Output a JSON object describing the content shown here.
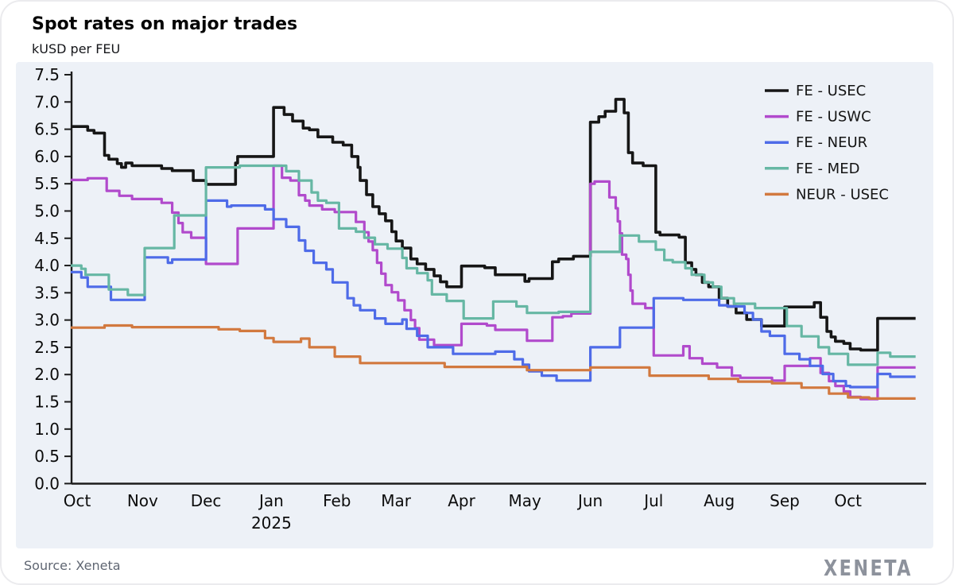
{
  "title": "Spot rates on major trades",
  "subtitle": "kUSD per FEU",
  "source": "Source: Xeneta",
  "brand": "XENETA",
  "chart_data": {
    "type": "line",
    "interpolation": "step-after",
    "title": "Spot rates on major trades",
    "ylabel": "kUSD per FEU",
    "x_unit": "days since 2024-10-01",
    "ylim": [
      0,
      7.5
    ],
    "y_tick_step": 0.5,
    "grid": false,
    "legend_position": "top-right",
    "plot_bg": "#edf1f7",
    "axis_color": "#1c1c1c",
    "x_ticks": [
      {
        "label": "Oct",
        "day": 0
      },
      {
        "label": "Nov",
        "day": 31
      },
      {
        "label": "Dec",
        "day": 61
      },
      {
        "label": "Jan",
        "day": 92,
        "sublabel": "2025"
      },
      {
        "label": "Feb",
        "day": 123
      },
      {
        "label": "Mar",
        "day": 151
      },
      {
        "label": "Apr",
        "day": 182
      },
      {
        "label": "May",
        "day": 212
      },
      {
        "label": "Jun",
        "day": 243
      },
      {
        "label": "Jul",
        "day": 273
      },
      {
        "label": "Aug",
        "day": 304
      },
      {
        "label": "Sep",
        "day": 335
      },
      {
        "label": "Oct",
        "day": 365
      }
    ],
    "series": [
      {
        "name": "FE - USEC",
        "color": "#161616",
        "width": 3.6,
        "points": [
          [
            -3,
            6.55
          ],
          [
            5,
            6.48
          ],
          [
            8,
            6.43
          ],
          [
            13,
            6.02
          ],
          [
            15,
            5.95
          ],
          [
            19,
            5.87
          ],
          [
            21,
            5.8
          ],
          [
            23,
            5.88
          ],
          [
            26,
            5.83
          ],
          [
            40,
            5.78
          ],
          [
            45,
            5.74
          ],
          [
            55,
            5.56
          ],
          [
            61,
            5.49
          ],
          [
            75,
            5.88
          ],
          [
            76,
            6.0
          ],
          [
            93,
            6.9
          ],
          [
            98,
            6.77
          ],
          [
            102,
            6.65
          ],
          [
            107,
            6.52
          ],
          [
            110,
            6.49
          ],
          [
            114,
            6.36
          ],
          [
            121,
            6.26
          ],
          [
            126,
            6.21
          ],
          [
            130,
            6.0
          ],
          [
            133,
            5.8
          ],
          [
            134,
            5.56
          ],
          [
            137,
            5.3
          ],
          [
            140,
            5.08
          ],
          [
            143,
            4.95
          ],
          [
            146,
            4.82
          ],
          [
            149,
            4.62
          ],
          [
            151,
            4.45
          ],
          [
            154,
            4.32
          ],
          [
            158,
            4.12
          ],
          [
            161,
            4.03
          ],
          [
            165,
            3.93
          ],
          [
            169,
            3.81
          ],
          [
            172,
            3.7
          ],
          [
            175,
            3.61
          ],
          [
            182,
            3.99
          ],
          [
            193,
            3.96
          ],
          [
            198,
            3.83
          ],
          [
            212,
            3.71
          ],
          [
            214,
            3.76
          ],
          [
            225,
            4.07
          ],
          [
            228,
            4.12
          ],
          [
            235,
            4.17
          ],
          [
            243,
            6.63
          ],
          [
            247,
            6.73
          ],
          [
            250,
            6.83
          ],
          [
            255,
            7.05
          ],
          [
            259,
            6.8
          ],
          [
            261,
            6.07
          ],
          [
            263,
            5.88
          ],
          [
            268,
            5.83
          ],
          [
            274,
            4.61
          ],
          [
            276,
            4.56
          ],
          [
            285,
            4.52
          ],
          [
            288,
            4.05
          ],
          [
            291,
            3.93
          ],
          [
            293,
            3.83
          ],
          [
            296,
            3.69
          ],
          [
            299,
            3.61
          ],
          [
            304,
            3.4
          ],
          [
            308,
            3.25
          ],
          [
            312,
            3.13
          ],
          [
            317,
            3.01
          ],
          [
            324,
            2.89
          ],
          [
            335,
            3.24
          ],
          [
            349,
            3.32
          ],
          [
            352,
            3.05
          ],
          [
            355,
            2.79
          ],
          [
            357,
            2.69
          ],
          [
            359,
            2.61
          ],
          [
            363,
            2.57
          ],
          [
            366,
            2.47
          ],
          [
            371,
            2.45
          ],
          [
            379,
            3.03
          ],
          [
            397,
            3.03
          ]
        ]
      },
      {
        "name": "FE - USWC",
        "color": "#b14acc",
        "width": 3.2,
        "points": [
          [
            -3,
            5.57
          ],
          [
            5,
            5.6
          ],
          [
            14,
            5.37
          ],
          [
            20,
            5.28
          ],
          [
            26,
            5.22
          ],
          [
            40,
            5.15
          ],
          [
            45,
            4.97
          ],
          [
            48,
            4.78
          ],
          [
            50,
            4.61
          ],
          [
            54,
            4.51
          ],
          [
            61,
            4.03
          ],
          [
            76,
            4.68
          ],
          [
            93,
            5.83
          ],
          [
            97,
            5.61
          ],
          [
            101,
            5.56
          ],
          [
            105,
            5.29
          ],
          [
            108,
            5.19
          ],
          [
            110,
            5.1
          ],
          [
            116,
            5.03
          ],
          [
            122,
            4.98
          ],
          [
            132,
            4.8
          ],
          [
            136,
            4.61
          ],
          [
            138,
            4.44
          ],
          [
            140,
            4.28
          ],
          [
            142,
            4.05
          ],
          [
            144,
            3.85
          ],
          [
            146,
            3.64
          ],
          [
            149,
            3.51
          ],
          [
            152,
            3.36
          ],
          [
            155,
            3.18
          ],
          [
            158,
            3.0
          ],
          [
            160,
            2.85
          ],
          [
            162,
            2.64
          ],
          [
            169,
            2.54
          ],
          [
            182,
            2.93
          ],
          [
            194,
            2.9
          ],
          [
            198,
            2.82
          ],
          [
            213,
            2.62
          ],
          [
            225,
            3.05
          ],
          [
            230,
            3.07
          ],
          [
            234,
            3.12
          ],
          [
            243,
            5.5
          ],
          [
            245,
            5.54
          ],
          [
            252,
            5.25
          ],
          [
            255,
            5.05
          ],
          [
            256,
            4.81
          ],
          [
            257,
            4.59
          ],
          [
            258,
            4.2
          ],
          [
            260,
            4.12
          ],
          [
            261,
            3.83
          ],
          [
            262,
            3.54
          ],
          [
            263,
            3.3
          ],
          [
            269,
            3.22
          ],
          [
            273,
            2.35
          ],
          [
            287,
            2.52
          ],
          [
            290,
            2.3
          ],
          [
            296,
            2.2
          ],
          [
            303,
            2.13
          ],
          [
            310,
            1.98
          ],
          [
            314,
            1.94
          ],
          [
            329,
            1.89
          ],
          [
            335,
            2.16
          ],
          [
            347,
            2.3
          ],
          [
            352,
            2.03
          ],
          [
            356,
            1.88
          ],
          [
            359,
            1.79
          ],
          [
            363,
            1.69
          ],
          [
            366,
            1.59
          ],
          [
            371,
            1.55
          ],
          [
            379,
            2.13
          ],
          [
            397,
            2.13
          ]
        ]
      },
      {
        "name": "FE - NEUR",
        "color": "#4e6be8",
        "width": 3.2,
        "points": [
          [
            -3,
            3.88
          ],
          [
            2,
            3.78
          ],
          [
            5,
            3.61
          ],
          [
            16,
            3.37
          ],
          [
            32,
            4.15
          ],
          [
            43,
            4.05
          ],
          [
            45,
            4.11
          ],
          [
            61,
            5.19
          ],
          [
            71,
            5.08
          ],
          [
            73,
            5.1
          ],
          [
            89,
            5.03
          ],
          [
            93,
            4.85
          ],
          [
            99,
            4.71
          ],
          [
            105,
            4.46
          ],
          [
            108,
            4.27
          ],
          [
            112,
            4.05
          ],
          [
            118,
            3.93
          ],
          [
            121,
            3.69
          ],
          [
            128,
            3.4
          ],
          [
            131,
            3.27
          ],
          [
            134,
            3.18
          ],
          [
            141,
            3.03
          ],
          [
            146,
            2.93
          ],
          [
            154,
            3.01
          ],
          [
            156,
            2.84
          ],
          [
            161,
            2.71
          ],
          [
            166,
            2.5
          ],
          [
            178,
            2.38
          ],
          [
            198,
            2.42
          ],
          [
            207,
            2.28
          ],
          [
            211,
            2.18
          ],
          [
            214,
            2.06
          ],
          [
            220,
            1.98
          ],
          [
            227,
            1.89
          ],
          [
            243,
            2.5
          ],
          [
            257,
            2.86
          ],
          [
            273,
            3.4
          ],
          [
            287,
            3.37
          ],
          [
            304,
            3.27
          ],
          [
            308,
            3.25
          ],
          [
            316,
            3.13
          ],
          [
            320,
            3.01
          ],
          [
            324,
            2.79
          ],
          [
            328,
            2.71
          ],
          [
            335,
            2.38
          ],
          [
            342,
            2.28
          ],
          [
            347,
            2.16
          ],
          [
            353,
            2.01
          ],
          [
            358,
            1.88
          ],
          [
            364,
            1.79
          ],
          [
            366,
            1.77
          ],
          [
            379,
            2.01
          ],
          [
            385,
            1.96
          ],
          [
            397,
            1.96
          ]
        ]
      },
      {
        "name": "FE - MED",
        "color": "#66b7a4",
        "width": 3.2,
        "points": [
          [
            -3,
            4.0
          ],
          [
            2,
            3.94
          ],
          [
            4,
            3.83
          ],
          [
            15,
            3.56
          ],
          [
            24,
            3.46
          ],
          [
            32,
            4.32
          ],
          [
            46,
            4.92
          ],
          [
            61,
            5.8
          ],
          [
            77,
            5.83
          ],
          [
            99,
            5.73
          ],
          [
            105,
            5.56
          ],
          [
            111,
            5.34
          ],
          [
            114,
            5.19
          ],
          [
            118,
            5.15
          ],
          [
            124,
            4.68
          ],
          [
            132,
            4.62
          ],
          [
            136,
            4.51
          ],
          [
            141,
            4.39
          ],
          [
            147,
            4.31
          ],
          [
            154,
            4.14
          ],
          [
            156,
            3.95
          ],
          [
            161,
            3.86
          ],
          [
            166,
            3.73
          ],
          [
            168,
            3.47
          ],
          [
            175,
            3.35
          ],
          [
            183,
            3.03
          ],
          [
            197,
            3.34
          ],
          [
            208,
            3.25
          ],
          [
            213,
            3.13
          ],
          [
            228,
            3.15
          ],
          [
            243,
            4.25
          ],
          [
            257,
            4.55
          ],
          [
            266,
            4.44
          ],
          [
            274,
            4.29
          ],
          [
            278,
            4.1
          ],
          [
            282,
            4.06
          ],
          [
            288,
            3.95
          ],
          [
            291,
            3.83
          ],
          [
            297,
            3.69
          ],
          [
            301,
            3.61
          ],
          [
            305,
            3.4
          ],
          [
            311,
            3.3
          ],
          [
            321,
            3.22
          ],
          [
            336,
            2.89
          ],
          [
            343,
            2.7
          ],
          [
            351,
            2.5
          ],
          [
            356,
            2.38
          ],
          [
            365,
            2.18
          ],
          [
            379,
            2.4
          ],
          [
            385,
            2.33
          ],
          [
            397,
            2.33
          ]
        ]
      },
      {
        "name": "NEUR - USEC",
        "color": "#d2793f",
        "width": 3.2,
        "points": [
          [
            -3,
            2.86
          ],
          [
            13,
            2.9
          ],
          [
            26,
            2.87
          ],
          [
            67,
            2.83
          ],
          [
            77,
            2.8
          ],
          [
            89,
            2.67
          ],
          [
            93,
            2.6
          ],
          [
            106,
            2.66
          ],
          [
            110,
            2.5
          ],
          [
            122,
            2.33
          ],
          [
            134,
            2.21
          ],
          [
            174,
            2.14
          ],
          [
            213,
            2.08
          ],
          [
            243,
            2.13
          ],
          [
            271,
            1.98
          ],
          [
            299,
            1.92
          ],
          [
            313,
            1.87
          ],
          [
            329,
            1.84
          ],
          [
            343,
            1.76
          ],
          [
            356,
            1.65
          ],
          [
            365,
            1.58
          ],
          [
            375,
            1.56
          ],
          [
            397,
            1.56
          ]
        ]
      }
    ]
  }
}
